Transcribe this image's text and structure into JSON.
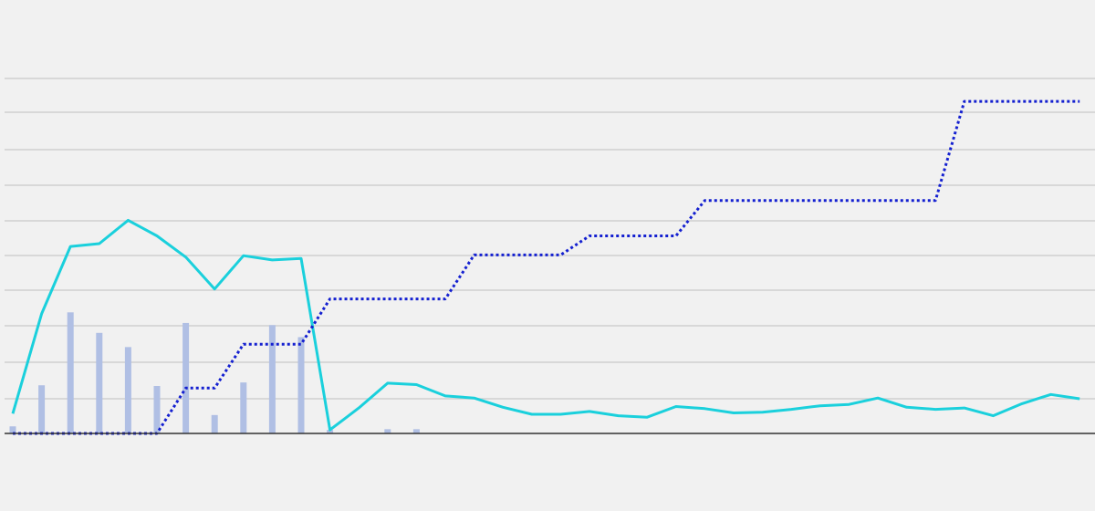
{
  "chart_data": {
    "type": "bar+line",
    "x": [
      1,
      2,
      3,
      4,
      5,
      6,
      7,
      8,
      9,
      10,
      11,
      12,
      13,
      14,
      15,
      16,
      17,
      18,
      19,
      20,
      21,
      22,
      23,
      24,
      25,
      26,
      27,
      28,
      29,
      30,
      31,
      32,
      33,
      34,
      35,
      36,
      37,
      38
    ],
    "ylim": [
      0,
      10
    ],
    "grid": true,
    "series": [
      {
        "type": "bar",
        "color": "#b0bfe4",
        "values": [
          0.2,
          1.36,
          3.42,
          2.84,
          2.44,
          1.34,
          3.12,
          0.52,
          1.44,
          3.06,
          2.72,
          0.1,
          0,
          0.12,
          0.12,
          0,
          0,
          0,
          0,
          0,
          0,
          0,
          0,
          0,
          0,
          0,
          0,
          0,
          0,
          0,
          0,
          0,
          0,
          0,
          0,
          0,
          0,
          0
        ]
      },
      {
        "type": "line",
        "style": "solid",
        "color": "#1ad0dc",
        "values": [
          0.56,
          3.38,
          5.28,
          5.36,
          6.02,
          5.58,
          4.98,
          4.08,
          5.02,
          4.9,
          4.94,
          0.1,
          0.72,
          1.42,
          1.38,
          1.06,
          1.0,
          0.74,
          0.54,
          0.54,
          0.62,
          0.5,
          0.46,
          0.76,
          0.7,
          0.58,
          0.6,
          0.68,
          0.78,
          0.82,
          1.0,
          0.74,
          0.68,
          0.72,
          0.5,
          0.84,
          1.1,
          0.98
        ]
      },
      {
        "type": "line",
        "style": "dotted",
        "color": "#1420d0",
        "values": [
          0,
          0,
          0,
          0,
          0,
          0,
          1.28,
          1.28,
          2.52,
          2.52,
          2.52,
          3.8,
          3.8,
          3.8,
          3.8,
          3.8,
          5.04,
          5.04,
          5.04,
          5.04,
          5.58,
          5.58,
          5.58,
          5.58,
          6.58,
          6.58,
          6.58,
          6.58,
          6.58,
          6.58,
          6.58,
          6.58,
          6.58,
          9.38,
          9.38,
          9.38,
          9.38,
          9.38
        ]
      }
    ]
  }
}
